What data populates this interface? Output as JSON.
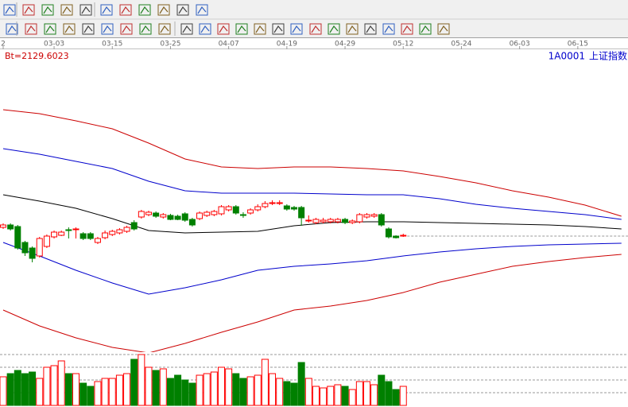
{
  "chart_data": {
    "type": "candlestick",
    "title": "上证指数",
    "symbol": "1A0001",
    "annotation": "Bt=2129.6023",
    "categories": [
      null,
      null,
      null,
      null,
      null,
      null,
      null,
      null,
      null,
      null,
      null,
      null,
      null,
      null,
      null,
      null,
      null,
      null,
      null,
      null,
      null,
      null,
      null,
      null,
      null,
      null,
      null,
      null,
      null,
      null,
      null,
      null,
      null,
      null,
      null,
      null,
      null,
      null,
      null,
      null,
      null,
      null,
      null,
      null,
      null,
      null,
      null,
      null,
      null,
      null,
      null,
      null,
      null,
      null,
      null,
      null
    ],
    "open": [
      2244,
      2247,
      2245,
      2225,
      2218,
      2208,
      2220,
      2232,
      2234,
      2241,
      2241,
      2236,
      2236,
      2225,
      2231,
      2235,
      2237,
      2239,
      2250,
      2257,
      2260,
      2262,
      2257,
      2259,
      2258,
      2261,
      2254,
      2255,
      2259,
      2260,
      2261,
      2266,
      2270,
      2260,
      2262,
      2266,
      2270,
      2274,
      2274,
      2271,
      2269,
      2269,
      2252,
      2250,
      2251,
      2251,
      2251,
      2254,
      2250,
      2251,
      2257,
      2258,
      2260,
      2242,
      2233,
      2233
    ],
    "high": [
      2249,
      2249,
      2247,
      2227,
      2220,
      2232,
      2235,
      2240,
      2240,
      2244,
      2244,
      2238,
      2238,
      2232,
      2240,
      2241,
      2243,
      2246,
      2253,
      2266,
      2265,
      2264,
      2262,
      2261,
      2260,
      2263,
      2256,
      2264,
      2265,
      2266,
      2272,
      2272,
      2272,
      2263,
      2268,
      2273,
      2277,
      2278,
      2278,
      2273,
      2271,
      2271,
      2259,
      2256,
      2256,
      2256,
      2256,
      2256,
      2254,
      2262,
      2262,
      2262,
      2262,
      2244,
      2234,
      2236
    ],
    "low": [
      2242,
      2240,
      2216,
      2208,
      2200,
      2206,
      2218,
      2230,
      2233,
      2230,
      2230,
      2228,
      2228,
      2223,
      2229,
      2233,
      2235,
      2237,
      2240,
      2255,
      2258,
      2256,
      2255,
      2253,
      2253,
      2251,
      2245,
      2253,
      2257,
      2258,
      2259,
      2264,
      2260,
      2256,
      2260,
      2264,
      2268,
      2272,
      2272,
      2265,
      2265,
      2246,
      2250,
      2248,
      2249,
      2249,
      2249,
      2248,
      2248,
      2249,
      2255,
      2256,
      2245,
      2230,
      2230,
      2232
    ],
    "close": [
      2247,
      2242,
      2218,
      2212,
      2205,
      2230,
      2233,
      2238,
      2238,
      2240,
      2242,
      2230,
      2230,
      2230,
      2237,
      2239,
      2241,
      2244,
      2242,
      2264,
      2263,
      2258,
      2260,
      2254,
      2254,
      2253,
      2247,
      2262,
      2263,
      2264,
      2270,
      2270,
      2262,
      2259,
      2266,
      2270,
      2274,
      2275,
      2275,
      2267,
      2267,
      2256,
      2253,
      2254,
      2253,
      2254,
      2254,
      2250,
      2252,
      2260,
      2260,
      2260,
      2247,
      2232,
      2231,
      2234
    ],
    "up_color": "#ff0000",
    "down_color": "#008000",
    "ylim": [
      2090,
      2450
    ],
    "reference_line": {
      "value": 2233,
      "color": "#999999"
    },
    "xlim": [
      -0.4,
      85.9
    ],
    "xticks": [
      {
        "value": 0,
        "label": "2"
      },
      {
        "value": 7,
        "label": "03-03"
      },
      {
        "value": 15,
        "label": "03-15"
      },
      {
        "value": 23,
        "label": "03-25"
      },
      {
        "value": 31,
        "label": "04-07"
      },
      {
        "value": 39,
        "label": "04-19"
      },
      {
        "value": 47,
        "label": "04-29"
      },
      {
        "value": 55,
        "label": "05-12"
      },
      {
        "value": 63,
        "label": "05-24"
      },
      {
        "value": 71,
        "label": "06-03"
      },
      {
        "value": 79,
        "label": "06-15"
      }
    ],
    "bands": {
      "x": [
        0,
        5,
        10,
        15,
        20,
        25,
        30,
        35,
        40,
        45,
        50,
        55,
        60,
        65,
        70,
        75,
        80,
        85
      ],
      "series": [
        {
          "color": "#cc0000",
          "values": [
            2392,
            2387,
            2378,
            2368,
            2350,
            2330,
            2320,
            2318,
            2320,
            2320,
            2318,
            2315,
            2308,
            2300,
            2290,
            2282,
            2272,
            2258
          ]
        },
        {
          "color": "#0000cc",
          "values": [
            2343,
            2336,
            2327,
            2318,
            2302,
            2290,
            2287,
            2287,
            2287,
            2286,
            2285,
            2285,
            2280,
            2273,
            2268,
            2264,
            2260,
            2254
          ]
        },
        {
          "color": "#000000",
          "values": [
            2285,
            2277,
            2268,
            2255,
            2240,
            2237,
            2238,
            2239,
            2246,
            2250,
            2251,
            2251,
            2250,
            2249,
            2248,
            2247,
            2245,
            2242
          ]
        },
        {
          "color": "#0000cc",
          "values": [
            2225,
            2208,
            2190,
            2174,
            2160,
            2168,
            2178,
            2190,
            2195,
            2198,
            2202,
            2208,
            2213,
            2217,
            2220,
            2222,
            2223,
            2224
          ]
        },
        {
          "color": "#cc0000",
          "values": [
            2140,
            2120,
            2105,
            2093,
            2086,
            2098,
            2112,
            2125,
            2140,
            2145,
            2152,
            2162,
            2175,
            2185,
            2195,
            2201,
            2206,
            2210
          ]
        }
      ]
    },
    "volume": {
      "values": [
        36,
        40,
        44,
        40,
        42,
        34,
        48,
        50,
        56,
        40,
        40,
        28,
        24,
        30,
        34,
        34,
        38,
        40,
        58,
        64,
        48,
        44,
        46,
        34,
        38,
        32,
        28,
        38,
        40,
        42,
        48,
        46,
        40,
        34,
        36,
        38,
        58,
        40,
        34,
        30,
        28,
        54,
        34,
        24,
        22,
        24,
        26,
        24,
        20,
        30,
        30,
        26,
        38,
        30,
        20,
        24
      ],
      "ylim": [
        0,
        70
      ],
      "yticks": [
        16,
        32,
        48,
        64
      ],
      "grid": true
    }
  }
}
